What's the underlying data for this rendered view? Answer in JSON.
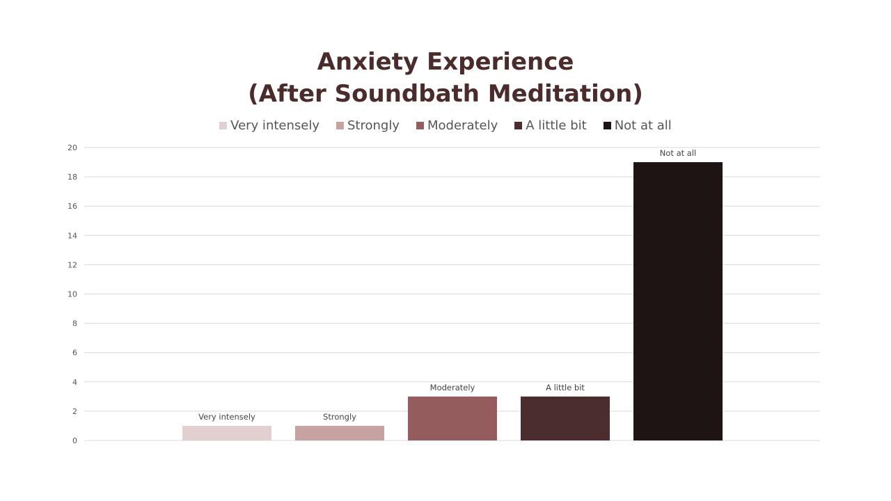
{
  "chart_data": {
    "type": "bar",
    "title_lines": [
      "Anxiety Experience",
      "(After Soundbath Meditation)"
    ],
    "xlabel": "",
    "ylabel": "",
    "categories": [
      "Very intensely",
      "Strongly",
      "Moderately",
      "A little bit",
      "Not at all"
    ],
    "values": [
      1,
      1,
      3,
      3,
      19
    ],
    "colors": [
      "#e1d0cf",
      "#c6a3a0",
      "#945c5c",
      "#4b2c2f",
      "#1e1414"
    ],
    "ylim": [
      0,
      20
    ],
    "yticks": [
      0,
      2,
      4,
      6,
      8,
      10,
      12,
      14,
      16,
      18,
      20
    ],
    "grid": true,
    "legend_position": "top-center",
    "data_labels": [
      "Very intensely",
      "Strongly",
      "Moderately",
      "A little bit",
      "Not at all"
    ]
  },
  "colors": {
    "title": "#4b2c2c",
    "grid": "#d9d9d9",
    "text": "#555555"
  }
}
